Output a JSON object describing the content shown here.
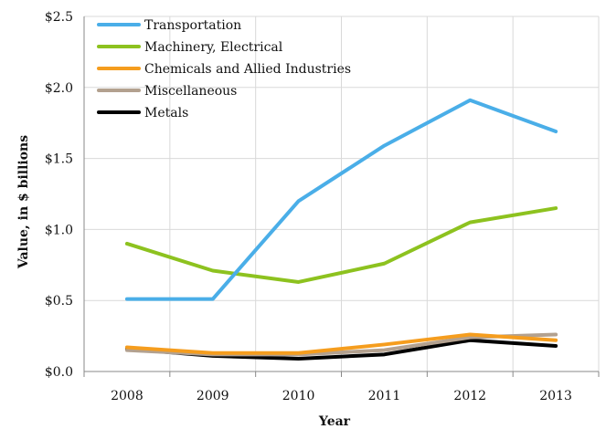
{
  "chart_data": {
    "type": "line",
    "title": "",
    "xlabel": "Year",
    "ylabel": "Value, in $ billions",
    "categories": [
      "2008",
      "2009",
      "2010",
      "2011",
      "2012",
      "2013"
    ],
    "ylim": [
      0,
      2.5
    ],
    "yticks": [
      0,
      0.5,
      1.0,
      1.5,
      2.0,
      2.5
    ],
    "ytick_labels": [
      "$0.0",
      "$0.5",
      "$1.0",
      "$1.5",
      "$2.0",
      "$2.5"
    ],
    "grid": true,
    "legend_position": "top-left",
    "series": [
      {
        "name": "Transportation",
        "color": "#4aaee8",
        "values": [
          0.51,
          0.51,
          1.2,
          1.59,
          1.91,
          1.69
        ]
      },
      {
        "name": "Machinery, Electrical",
        "color": "#8dc21f",
        "values": [
          0.9,
          0.71,
          0.63,
          0.76,
          1.05,
          1.15
        ]
      },
      {
        "name": "Chemicals and Allied Industries",
        "color": "#f59d1e",
        "values": [
          0.17,
          0.13,
          0.13,
          0.19,
          0.26,
          0.22
        ]
      },
      {
        "name": "Miscellaneous",
        "color": "#b3a18f",
        "values": [
          0.15,
          0.12,
          0.12,
          0.15,
          0.24,
          0.26
        ]
      },
      {
        "name": "Metals",
        "color": "#000000",
        "values": [
          0.16,
          0.11,
          0.09,
          0.12,
          0.22,
          0.18
        ]
      }
    ]
  }
}
